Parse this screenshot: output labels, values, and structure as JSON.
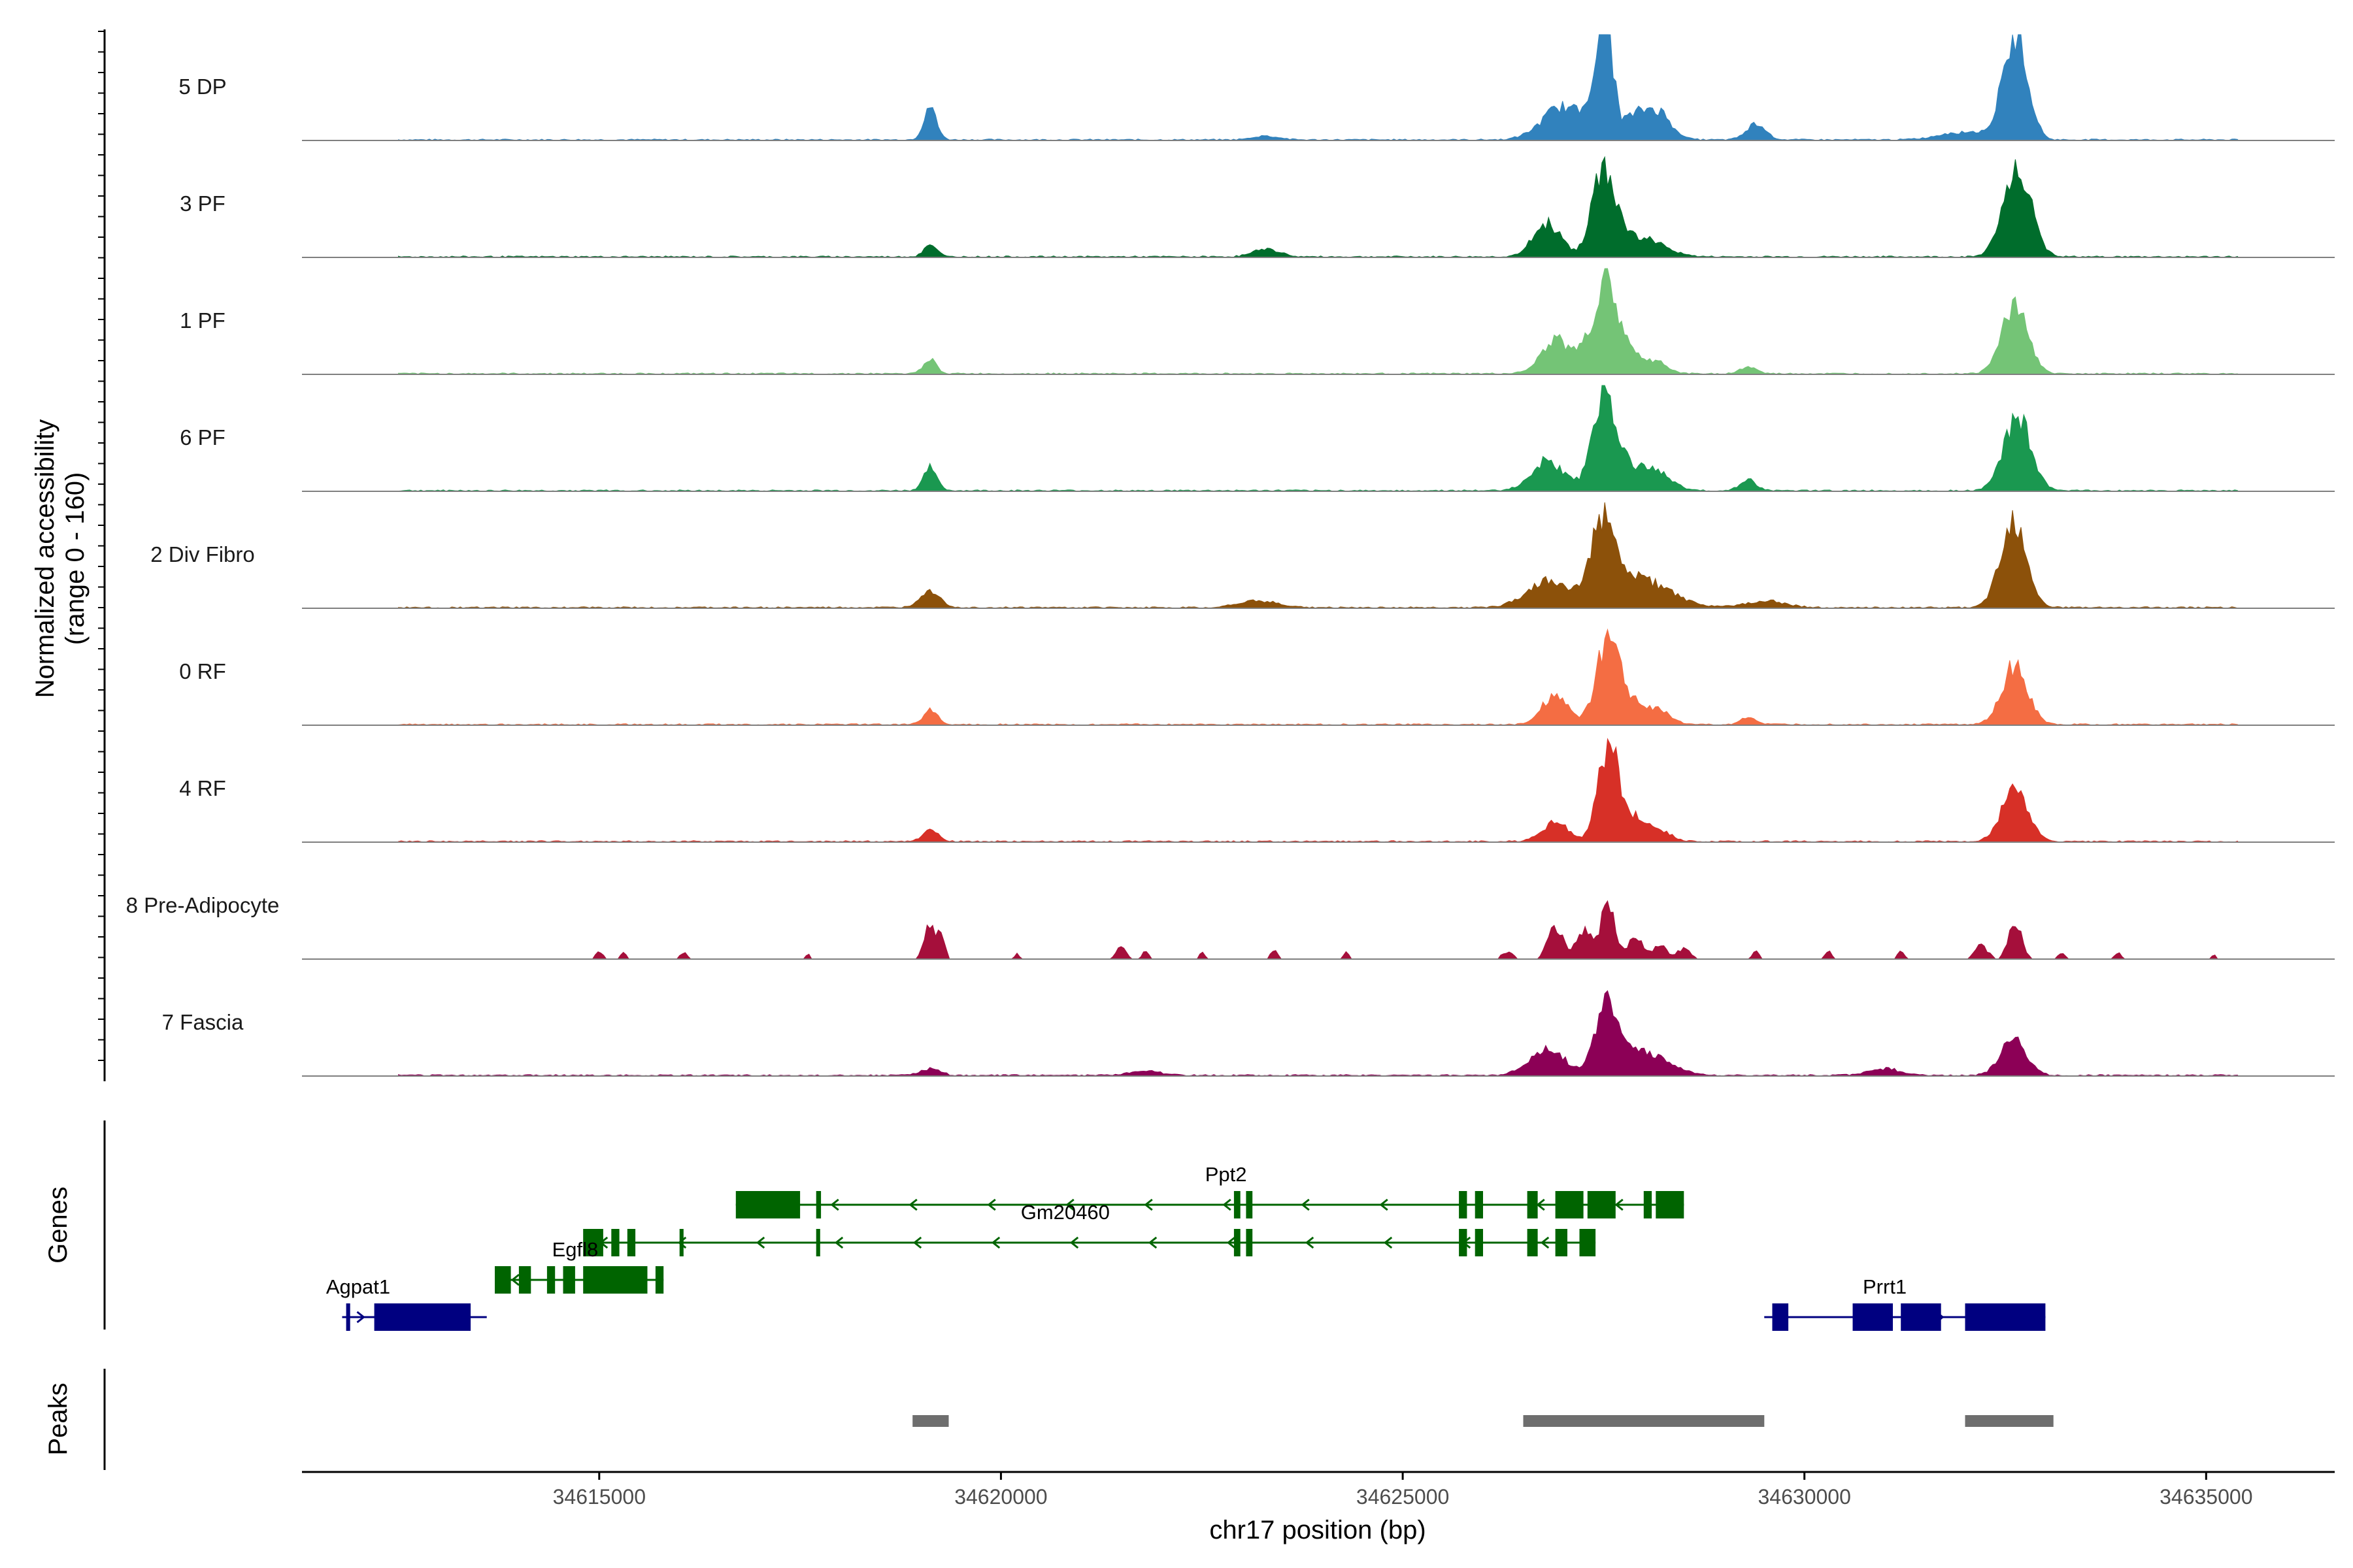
{
  "chart_data": {
    "type": "area",
    "chromosome": "chr17",
    "xlabel": "chr17 position (bp)",
    "xlim": [
      34611300,
      34636600
    ],
    "x_ticks": [
      34615000,
      34620000,
      34625000,
      34630000,
      34635000
    ],
    "x_tick_labels": [
      "34615000",
      "34620000",
      "34625000",
      "34630000",
      "34635000"
    ],
    "ylabel": "Normalized accessibility",
    "ylabel_range": "(range 0 - 160)",
    "ylim": [
      0,
      160
    ],
    "coverage_extent": [
      34612500,
      34635400
    ],
    "tracks": [
      {
        "name": "5 DP",
        "color": "#3182bd",
        "peaks": [
          [
            34619120,
            48,
            80
          ],
          [
            34623300,
            6,
            160
          ],
          [
            34627000,
            50,
            260
          ],
          [
            34627450,
            110,
            110
          ],
          [
            34627560,
            90,
            70
          ],
          [
            34627900,
            35,
            220
          ],
          [
            34628200,
            30,
            160
          ],
          [
            34629400,
            25,
            120
          ],
          [
            34632000,
            12,
            300
          ],
          [
            34632600,
            125,
            150
          ],
          [
            34632720,
            45,
            120
          ]
        ]
      },
      {
        "name": "3 PF",
        "color": "#006d2c",
        "peaks": [
          [
            34619120,
            18,
            80
          ],
          [
            34623300,
            12,
            160
          ],
          [
            34626800,
            50,
            170
          ],
          [
            34627500,
            120,
            140
          ],
          [
            34627800,
            28,
            250
          ],
          [
            34628200,
            12,
            200
          ],
          [
            34632650,
            130,
            170
          ]
        ]
      },
      {
        "name": "1 PF",
        "color": "#74c476",
        "peaks": [
          [
            34619120,
            22,
            80
          ],
          [
            34626900,
            50,
            180
          ],
          [
            34627300,
            40,
            140
          ],
          [
            34627550,
            125,
            120
          ],
          [
            34627800,
            40,
            120
          ],
          [
            34628150,
            18,
            140
          ],
          [
            34629300,
            10,
            100
          ],
          [
            34632620,
            105,
            160
          ]
        ]
      },
      {
        "name": "6 PF",
        "color": "#1a9850",
        "peaks": [
          [
            34619120,
            36,
            80
          ],
          [
            34626800,
            45,
            200
          ],
          [
            34627500,
            130,
            140
          ],
          [
            34627800,
            35,
            250
          ],
          [
            34628200,
            18,
            180
          ],
          [
            34629300,
            16,
            100
          ],
          [
            34632650,
            110,
            170
          ]
        ]
      },
      {
        "name": "2 Div Fibro",
        "color": "#8c510a",
        "peaks": [
          [
            34619120,
            26,
            120
          ],
          [
            34623200,
            10,
            240
          ],
          [
            34626800,
            40,
            260
          ],
          [
            34627500,
            130,
            160
          ],
          [
            34627900,
            40,
            260
          ],
          [
            34628300,
            14,
            280
          ],
          [
            34629500,
            10,
            250
          ],
          [
            34632600,
            130,
            160
          ]
        ]
      },
      {
        "name": "0 RF",
        "color": "#f46d43",
        "peaks": [
          [
            34619120,
            22,
            90
          ],
          [
            34626900,
            45,
            160
          ],
          [
            34627550,
            120,
            140
          ],
          [
            34627850,
            30,
            200
          ],
          [
            34628200,
            18,
            140
          ],
          [
            34629300,
            10,
            100
          ],
          [
            34632620,
            90,
            160
          ]
        ]
      },
      {
        "name": "4 RF",
        "color": "#d73027",
        "peaks": [
          [
            34619120,
            20,
            90
          ],
          [
            34626900,
            30,
            160
          ],
          [
            34627550,
            130,
            120
          ],
          [
            34627800,
            40,
            200
          ],
          [
            34628200,
            14,
            140
          ],
          [
            34632620,
            80,
            160
          ]
        ]
      },
      {
        "name": "8 Pre-Adipocyte",
        "color": "#a50f3b",
        "sparse": true,
        "peaks": [
          [
            34615000,
            10,
            50
          ],
          [
            34615300,
            10,
            40
          ],
          [
            34616050,
            10,
            40
          ],
          [
            34617600,
            8,
            30
          ],
          [
            34619100,
            55,
            60
          ],
          [
            34619250,
            40,
            50
          ],
          [
            34620200,
            8,
            30
          ],
          [
            34621500,
            18,
            60
          ],
          [
            34621800,
            12,
            40
          ],
          [
            34622500,
            10,
            40
          ],
          [
            34623400,
            14,
            40
          ],
          [
            34624300,
            10,
            40
          ],
          [
            34626300,
            10,
            80
          ],
          [
            34626900,
            50,
            90
          ],
          [
            34627250,
            45,
            90
          ],
          [
            34627550,
            80,
            90
          ],
          [
            34627900,
            35,
            90
          ],
          [
            34628200,
            20,
            90
          ],
          [
            34628500,
            16,
            80
          ],
          [
            34629400,
            12,
            40
          ],
          [
            34630300,
            12,
            40
          ],
          [
            34631200,
            14,
            40
          ],
          [
            34632200,
            20,
            80
          ],
          [
            34632620,
            55,
            80
          ],
          [
            34633200,
            10,
            40
          ],
          [
            34633900,
            10,
            40
          ],
          [
            34635100,
            6,
            30
          ]
        ]
      },
      {
        "name": "7 Fascia",
        "color": "#8c0056",
        "peaks": [
          [
            34619120,
            10,
            120
          ],
          [
            34621800,
            6,
            200
          ],
          [
            34626800,
            40,
            220
          ],
          [
            34627550,
            105,
            150
          ],
          [
            34627950,
            30,
            220
          ],
          [
            34628300,
            12,
            200
          ],
          [
            34631000,
            10,
            200
          ],
          [
            34632600,
            55,
            160
          ]
        ]
      }
    ],
    "genes_title": "Genes",
    "genes": [
      {
        "name": "Ppt2",
        "strand": "-",
        "color": "#006400",
        "start": 34616700,
        "end": 34628500,
        "label_pos": 34622800,
        "exons": [
          [
            34616700,
            34617500
          ],
          [
            34617700,
            34617760
          ],
          [
            34622900,
            34622980
          ],
          [
            34623050,
            34623130
          ],
          [
            34625700,
            34625800
          ],
          [
            34625900,
            34626000
          ],
          [
            34626550,
            34626680
          ],
          [
            34626900,
            34627250
          ],
          [
            34627300,
            34627650
          ],
          [
            34628000,
            34628100
          ],
          [
            34628150,
            34628500
          ]
        ]
      },
      {
        "name": "Gm20460",
        "strand": "-",
        "color": "#006400",
        "start": 34614800,
        "end": 34627400,
        "label_pos": 34620800,
        "exons": [
          [
            34614800,
            34615050
          ],
          [
            34615150,
            34615250
          ],
          [
            34615350,
            34615450
          ],
          [
            34616000,
            34616050
          ],
          [
            34617700,
            34617750
          ],
          [
            34622900,
            34622980
          ],
          [
            34623050,
            34623130
          ],
          [
            34625700,
            34625800
          ],
          [
            34625900,
            34626000
          ],
          [
            34626550,
            34626680
          ],
          [
            34626900,
            34627050
          ],
          [
            34627200,
            34627400
          ]
        ]
      },
      {
        "name": "Egfl8",
        "strand": "-",
        "color": "#006400",
        "start": 34613700,
        "end": 34615800,
        "label_pos": 34614700,
        "exons": [
          [
            34613700,
            34613900
          ],
          [
            34614000,
            34614150
          ],
          [
            34614350,
            34614450
          ],
          [
            34614550,
            34614700
          ],
          [
            34614800,
            34615600
          ],
          [
            34615700,
            34615800
          ]
        ]
      },
      {
        "name": "Agpat1",
        "strand": "+",
        "color": "#000080",
        "start": 34611800,
        "end": 34613600,
        "label_pos": 34612000,
        "exons": [
          [
            34611850,
            34611900
          ],
          [
            34612200,
            34613400
          ]
        ]
      },
      {
        "name": "Prrt1",
        "strand": "+",
        "color": "#000080",
        "start": 34629500,
        "end": 34633000,
        "label_pos": 34631000,
        "exons": [
          [
            34629600,
            34629800
          ],
          [
            34630600,
            34631100
          ],
          [
            34631200,
            34631700
          ],
          [
            34632000,
            34633000
          ]
        ]
      }
    ],
    "peaks_title": "Peaks",
    "peak_regions": [
      [
        34618900,
        34619350
      ],
      [
        34626500,
        34629500
      ],
      [
        34632000,
        34633100
      ]
    ]
  }
}
